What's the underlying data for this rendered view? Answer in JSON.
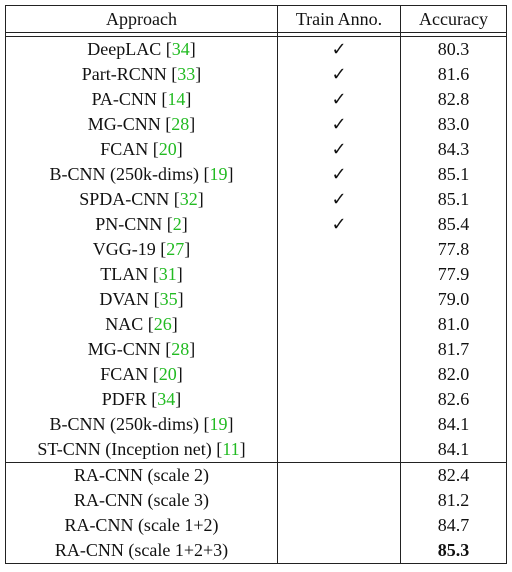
{
  "headers": {
    "approach": "Approach",
    "train_anno": "Train Anno.",
    "accuracy": "Accuracy"
  },
  "check_mark": "✓",
  "group1": [
    {
      "name": "DeepLAC [",
      "ref": "34",
      "close": "]",
      "anno": true,
      "acc": "80.3"
    },
    {
      "name": "Part-RCNN [",
      "ref": "33",
      "close": "]",
      "anno": true,
      "acc": "81.6"
    },
    {
      "name": "PA-CNN [",
      "ref": "14",
      "close": "]",
      "anno": true,
      "acc": "82.8"
    },
    {
      "name": "MG-CNN [",
      "ref": "28",
      "close": "]",
      "anno": true,
      "acc": "83.0"
    },
    {
      "name": "FCAN [",
      "ref": "20",
      "close": "]",
      "anno": true,
      "acc": "84.3"
    },
    {
      "name": "B-CNN (250k-dims) [",
      "ref": "19",
      "close": "]",
      "anno": true,
      "acc": "85.1"
    },
    {
      "name": "SPDA-CNN [",
      "ref": "32",
      "close": "]",
      "anno": true,
      "acc": "85.1"
    },
    {
      "name": "PN-CNN [",
      "ref": "2",
      "close": "]",
      "anno": true,
      "acc": "85.4"
    },
    {
      "name": "VGG-19 [",
      "ref": "27",
      "close": "]",
      "anno": false,
      "acc": "77.8"
    },
    {
      "name": "TLAN [",
      "ref": "31",
      "close": "]",
      "anno": false,
      "acc": "77.9"
    },
    {
      "name": "DVAN [",
      "ref": "35",
      "close": "]",
      "anno": false,
      "acc": "79.0"
    },
    {
      "name": "NAC [",
      "ref": "26",
      "close": "]",
      "anno": false,
      "acc": "81.0"
    },
    {
      "name": "MG-CNN [",
      "ref": "28",
      "close": "]",
      "anno": false,
      "acc": "81.7"
    },
    {
      "name": "FCAN [",
      "ref": "20",
      "close": "]",
      "anno": false,
      "acc": "82.0"
    },
    {
      "name": "PDFR [",
      "ref": "34",
      "close": "]",
      "anno": false,
      "acc": "82.6"
    },
    {
      "name": "B-CNN (250k-dims) [",
      "ref": "19",
      "close": "]",
      "anno": false,
      "acc": "84.1"
    },
    {
      "name": "ST-CNN (Inception net) [",
      "ref": "11",
      "close": "]",
      "anno": false,
      "acc": "84.1"
    }
  ],
  "group2": [
    {
      "name": "RA-CNN (scale 2)",
      "acc": "82.4",
      "bold": false
    },
    {
      "name": "RA-CNN (scale 3)",
      "acc": "81.2",
      "bold": false
    },
    {
      "name": "RA-CNN (scale 1+2)",
      "acc": "84.7",
      "bold": false
    },
    {
      "name": "RA-CNN (scale 1+2+3)",
      "acc": "85.3",
      "bold": true
    }
  ]
}
